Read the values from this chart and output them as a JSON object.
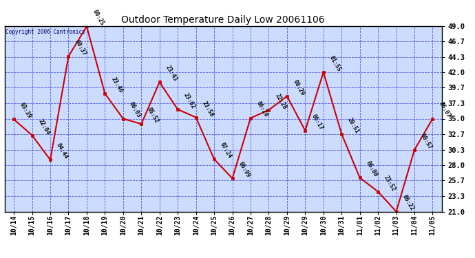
{
  "title": "Outdoor Temperature Daily Low 20061106",
  "copyright": "Copyright 2006 Cantronics",
  "x_labels": [
    "10/14",
    "10/15",
    "10/16",
    "10/17",
    "10/18",
    "10/19",
    "10/20",
    "10/21",
    "10/22",
    "10/23",
    "10/24",
    "10/25",
    "10/26",
    "10/27",
    "10/28",
    "10/29",
    "10/29",
    "10/30",
    "10/31",
    "11/01",
    "11/02",
    "11/03",
    "11/04",
    "11/05"
  ],
  "y_values": [
    34.9,
    32.5,
    28.8,
    44.4,
    48.9,
    38.8,
    35.0,
    34.2,
    40.5,
    36.4,
    35.2,
    28.9,
    26.0,
    35.1,
    36.3,
    38.4,
    33.2,
    42.0,
    32.7,
    26.1,
    24.0,
    21.0,
    30.3,
    35.0
  ],
  "point_labels": [
    "03:39",
    "22:04",
    "04:44",
    "00:37",
    "00:25",
    "23:46",
    "06:03",
    "05:52",
    "23:43",
    "23:62",
    "23:58",
    "07:24",
    "06:99",
    "06:20",
    "22:28",
    "00:29",
    "06:17",
    "01:55",
    "20:51",
    "06:00",
    "23:52",
    "06:22",
    "00:57",
    "06:07"
  ],
  "ylim_min": 21.0,
  "ylim_max": 49.0,
  "yticks": [
    21.0,
    23.3,
    25.7,
    28.0,
    30.3,
    32.7,
    35.0,
    37.3,
    39.7,
    42.0,
    44.3,
    46.7,
    49.0
  ],
  "line_color": "#cc0000",
  "marker_color": "#cc0000",
  "bg_color": "#ccdcff",
  "grid_color": "#0000cc",
  "label_color": "#000000",
  "title_color": "#000000",
  "axis_label_color": "#000000",
  "outer_bg": "#ffffff",
  "copyright_color": "#000066",
  "grid_alpha": 0.6,
  "grid_linewidth": 0.6
}
